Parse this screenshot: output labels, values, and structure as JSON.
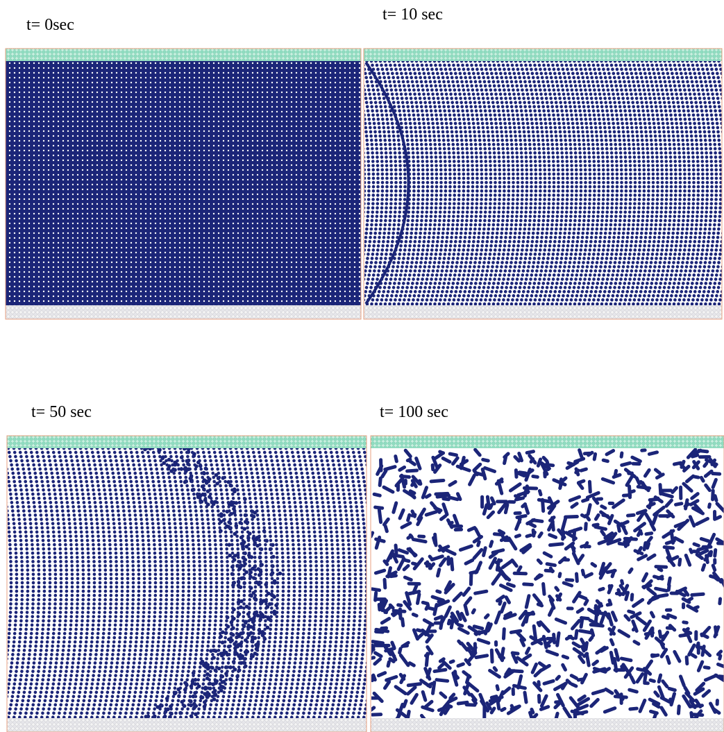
{
  "panels": [
    {
      "label": "t= 0sec"
    },
    {
      "label": "t= 10 sec"
    },
    {
      "label": "t= 50 sec"
    },
    {
      "label": "t= 100 sec"
    }
  ]
}
